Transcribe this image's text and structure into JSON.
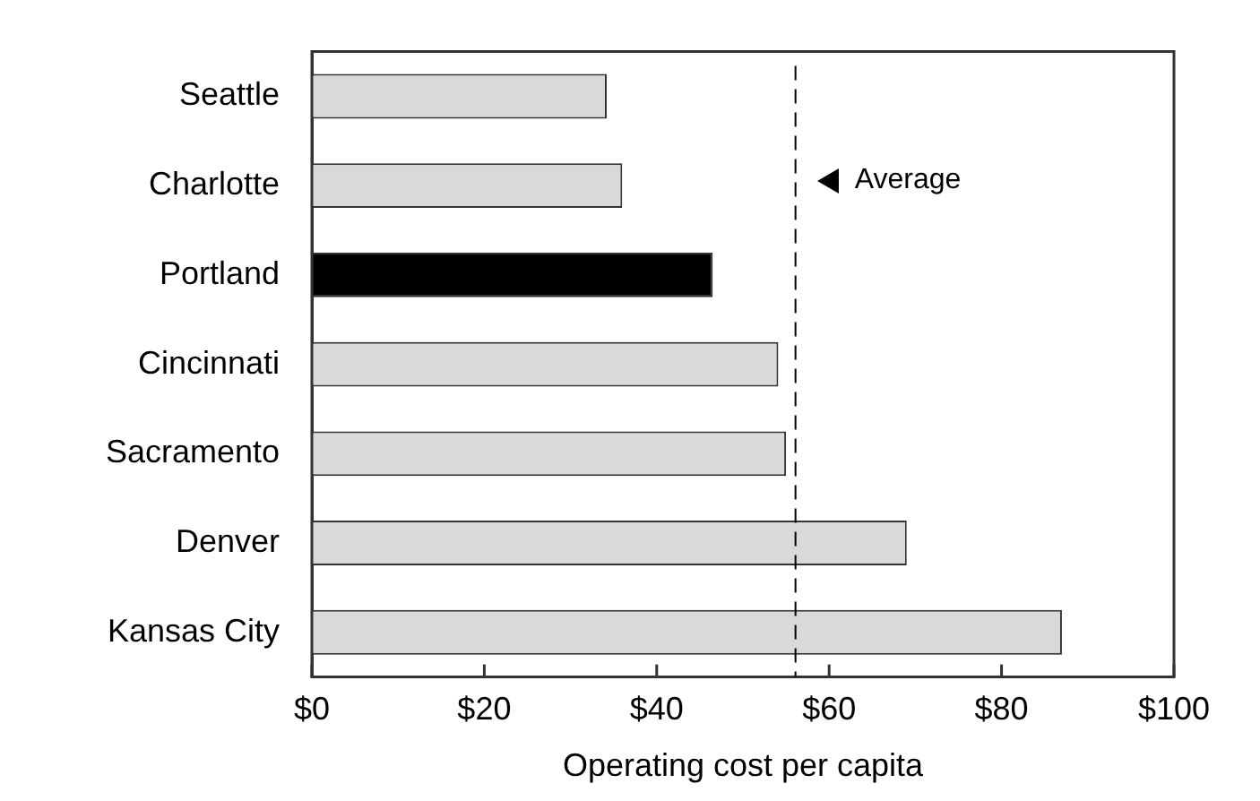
{
  "chart_data": {
    "type": "bar",
    "orientation": "horizontal",
    "xlabel": "Operating cost per capita",
    "categories": [
      "Seattle",
      "Charlotte",
      "Portland",
      "Cincinnati",
      "Sacramento",
      "Denver",
      "Kansas City"
    ],
    "values": [
      34.2,
      36.0,
      46.5,
      54.1,
      55.0,
      69.0,
      87.0
    ],
    "colors": [
      "#d9d9d9",
      "#d9d9d9",
      "#000000",
      "#d9d9d9",
      "#d9d9d9",
      "#d9d9d9",
      "#d9d9d9"
    ],
    "xlim": [
      0,
      100
    ],
    "xticks": [
      {
        "value": 0,
        "label": "$0"
      },
      {
        "value": 20,
        "label": "$20"
      },
      {
        "value": 40,
        "label": "$40"
      },
      {
        "value": 60,
        "label": "$60"
      },
      {
        "value": 80,
        "label": "$80"
      },
      {
        "value": 100,
        "label": "$100"
      }
    ],
    "ref_lines": [
      {
        "axis": "x",
        "value": 56.1,
        "label": "Average",
        "color": "#000000",
        "line_style": "dashed"
      }
    ],
    "grid": false,
    "legend": false
  }
}
